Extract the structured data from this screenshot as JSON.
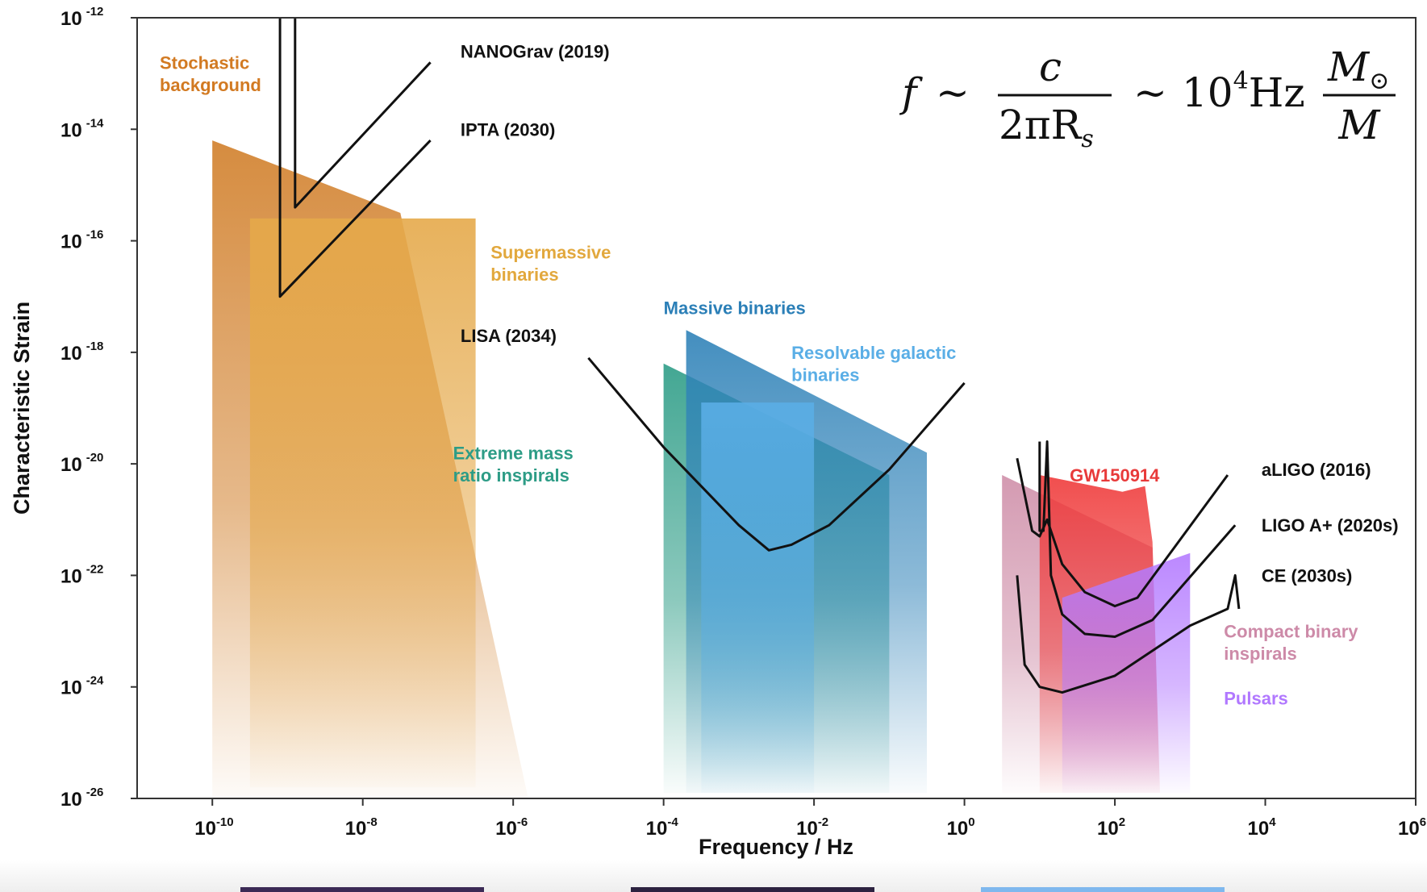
{
  "chart_data": {
    "type": "area",
    "xlabel": "Frequency / Hz",
    "ylabel": "Characteristic Strain",
    "x_scale": "log",
    "y_scale": "log",
    "xlim": [
      1e-11,
      1000000.0
    ],
    "ylim": [
      1e-26,
      1e-12
    ],
    "x_ticks": [
      {
        "base": "10",
        "exp": "-10",
        "value": -10
      },
      {
        "base": "10",
        "exp": "-8",
        "value": -8
      },
      {
        "base": "10",
        "exp": "-6",
        "value": -6
      },
      {
        "base": "10",
        "exp": "-4",
        "value": -4
      },
      {
        "base": "10",
        "exp": "-2",
        "value": -2
      },
      {
        "base": "10",
        "exp": "0",
        "value": 0
      },
      {
        "base": "10",
        "exp": "2",
        "value": 2
      },
      {
        "base": "10",
        "exp": "4",
        "value": 4
      },
      {
        "base": "10",
        "exp": "6",
        "value": 6
      }
    ],
    "y_ticks": [
      {
        "base": "10",
        "exp": "-12",
        "value": -12
      },
      {
        "base": "10",
        "exp": "-14",
        "value": -14
      },
      {
        "base": "10",
        "exp": "-16",
        "value": -16
      },
      {
        "base": "10",
        "exp": "-18",
        "value": -18
      },
      {
        "base": "10",
        "exp": "-20",
        "value": -20
      },
      {
        "base": "10",
        "exp": "-22",
        "value": -22
      },
      {
        "base": "10",
        "exp": "-24",
        "value": -24
      },
      {
        "base": "10",
        "exp": "-26",
        "value": -26
      }
    ],
    "grid": false,
    "sources": [
      {
        "name": "Stochastic background",
        "color": "#d17f2a",
        "polygon": [
          [
            -10,
            -14.2
          ],
          [
            -7.5,
            -15.5
          ],
          [
            -5.8,
            -26
          ],
          [
            -10,
            -26
          ]
        ]
      },
      {
        "name": "Supermassive binaries",
        "color": "#e5a94a",
        "polygon": [
          [
            -9.5,
            -15.6
          ],
          [
            -6.5,
            -15.6
          ],
          [
            -6.5,
            -25.8
          ],
          [
            -9.5,
            -25.8
          ]
        ]
      },
      {
        "name": "Extreme mass ratio inspirals",
        "color": "#2e9d87",
        "polygon": [
          [
            -4,
            -18.2
          ],
          [
            -1,
            -20.2
          ],
          [
            -1,
            -25.9
          ],
          [
            -4,
            -25.9
          ]
        ]
      },
      {
        "name": "Massive binaries",
        "color": "#2f82b8",
        "polygon": [
          [
            -3.7,
            -17.6
          ],
          [
            -0.5,
            -19.8
          ],
          [
            -0.5,
            -25.9
          ],
          [
            -3.7,
            -25.9
          ]
        ]
      },
      {
        "name": "Resolvable galactic binaries",
        "color": "#5aaee6",
        "polygon": [
          [
            -3.5,
            -18.9
          ],
          [
            -2,
            -18.9
          ],
          [
            -2,
            -25.9
          ],
          [
            -3.5,
            -25.9
          ]
        ]
      },
      {
        "name": "Compact binary inspirals",
        "color": "#cf8fa9",
        "polygon": [
          [
            0.5,
            -20.2
          ],
          [
            2.5,
            -21.5
          ],
          [
            2.6,
            -25.9
          ],
          [
            0.5,
            -25.9
          ]
        ]
      },
      {
        "name": "GW150914",
        "color": "#ef3a3a",
        "polygon": [
          [
            1,
            -20.2
          ],
          [
            2.1,
            -20.5
          ],
          [
            2.4,
            -20.4
          ],
          [
            2.5,
            -21.4
          ],
          [
            2.6,
            -25.9
          ],
          [
            1,
            -25.9
          ]
        ]
      },
      {
        "name": "Pulsars",
        "color": "#b47bff",
        "polygon": [
          [
            1.3,
            -22.4
          ],
          [
            3,
            -21.6
          ],
          [
            3,
            -25.9
          ],
          [
            1.3,
            -25.9
          ]
        ]
      }
    ],
    "detectors": [
      {
        "name": "NANOGrav (2019)",
        "points": [
          [
            -8.9,
            -12
          ],
          [
            -8.9,
            -15.4
          ],
          [
            -7.1,
            -12.8
          ]
        ]
      },
      {
        "name": "IPTA (2030)",
        "points": [
          [
            -9.1,
            -12
          ],
          [
            -9.1,
            -17
          ],
          [
            -7.1,
            -14.2
          ]
        ]
      },
      {
        "name": "LISA (2034)",
        "points": [
          [
            -5,
            -18.1
          ],
          [
            -4,
            -19.7
          ],
          [
            -3,
            -21.1
          ],
          [
            -2.6,
            -21.55
          ],
          [
            -2.3,
            -21.45
          ],
          [
            -1.8,
            -21.1
          ],
          [
            -1,
            -20.1
          ],
          [
            0,
            -18.55
          ]
        ]
      },
      {
        "name": "aLIGO (2016)",
        "points": [
          [
            0.7,
            -19.9
          ],
          [
            0.9,
            -21.2
          ],
          [
            1,
            -21.3
          ],
          [
            1.1,
            -21.0
          ],
          [
            1.3,
            -21.8
          ],
          [
            1.6,
            -22.3
          ],
          [
            2.0,
            -22.55
          ],
          [
            2.3,
            -22.4
          ],
          [
            3.5,
            -20.2
          ]
        ]
      },
      {
        "name": "LIGO A+ (2020s)",
        "points": [
          [
            1,
            -19.6
          ],
          [
            1.0,
            -21.2
          ],
          [
            1.05,
            -21.2
          ],
          [
            1.1,
            -19.6
          ],
          [
            1.15,
            -22.0
          ],
          [
            1.3,
            -22.7
          ],
          [
            1.6,
            -23.05
          ],
          [
            2.0,
            -23.1
          ],
          [
            2.5,
            -22.8
          ],
          [
            3.6,
            -21.1
          ]
        ]
      },
      {
        "name": "CE (2030s)",
        "points": [
          [
            0.7,
            -22.0
          ],
          [
            0.8,
            -23.6
          ],
          [
            1.0,
            -24.0
          ],
          [
            1.3,
            -24.1
          ],
          [
            2.0,
            -23.8
          ],
          [
            3.0,
            -22.9
          ],
          [
            3.5,
            -22.6
          ],
          [
            3.6,
            -22.0
          ],
          [
            3.65,
            -22.6
          ]
        ]
      }
    ],
    "labels": [
      {
        "text": "Stochastic",
        "color": "#d27a22",
        "x": -10.7,
        "y": -12.8
      },
      {
        "text": "background",
        "color": "#d27a22",
        "x": -10.7,
        "y": -13.2
      },
      {
        "text": "NANOGrav (2019)",
        "color": "#111111",
        "x": -6.7,
        "y": -12.6
      },
      {
        "text": "IPTA (2030)",
        "color": "#111111",
        "x": -6.7,
        "y": -14.0
      },
      {
        "text": "Supermassive",
        "color": "#e2a83d",
        "x": -6.3,
        "y": -16.2
      },
      {
        "text": "binaries",
        "color": "#e2a83d",
        "x": -6.3,
        "y": -16.6
      },
      {
        "text": "Massive binaries",
        "color": "#2b7fb7",
        "x": -4,
        "y": -17.2
      },
      {
        "text": "LISA (2034)",
        "color": "#111111",
        "x": -6.7,
        "y": -17.7
      },
      {
        "text": "Resolvable galactic",
        "color": "#5aaee6",
        "x": -2.3,
        "y": -18.0
      },
      {
        "text": "binaries",
        "color": "#5aaee6",
        "x": -2.3,
        "y": -18.4
      },
      {
        "text": "Extreme mass",
        "color": "#2d9c86",
        "x": -6.8,
        "y": -19.8
      },
      {
        "text": "ratio inspirals",
        "color": "#2d9c86",
        "x": -6.8,
        "y": -20.2
      },
      {
        "text": "GW150914",
        "color": "#e83a3a",
        "x": 1.4,
        "y": -20.2
      },
      {
        "text": "aLIGO (2016)",
        "color": "#111111",
        "x": 3.95,
        "y": -20.1
      },
      {
        "text": "LIGO A+ (2020s)",
        "color": "#111111",
        "x": 3.95,
        "y": -21.1
      },
      {
        "text": "CE (2030s)",
        "color": "#111111",
        "x": 3.95,
        "y": -22.0
      },
      {
        "text": "Compact binary",
        "color": "#cd8aa8",
        "x": 3.45,
        "y": -23.0
      },
      {
        "text": "inspirals",
        "color": "#cd8aa8",
        "x": 3.45,
        "y": -23.4
      },
      {
        "text": "Pulsars",
        "color": "#b178ff",
        "x": 3.45,
        "y": -24.2
      }
    ],
    "formula": {
      "lhs": "f",
      "sim": "~",
      "num1": "c",
      "den1": "2πR",
      "den1_sub": "s",
      "mid": "10",
      "mid_sup": "4",
      "unit": "Hz",
      "num2": "M",
      "num2_sub": "⊙",
      "den2": "M"
    }
  }
}
